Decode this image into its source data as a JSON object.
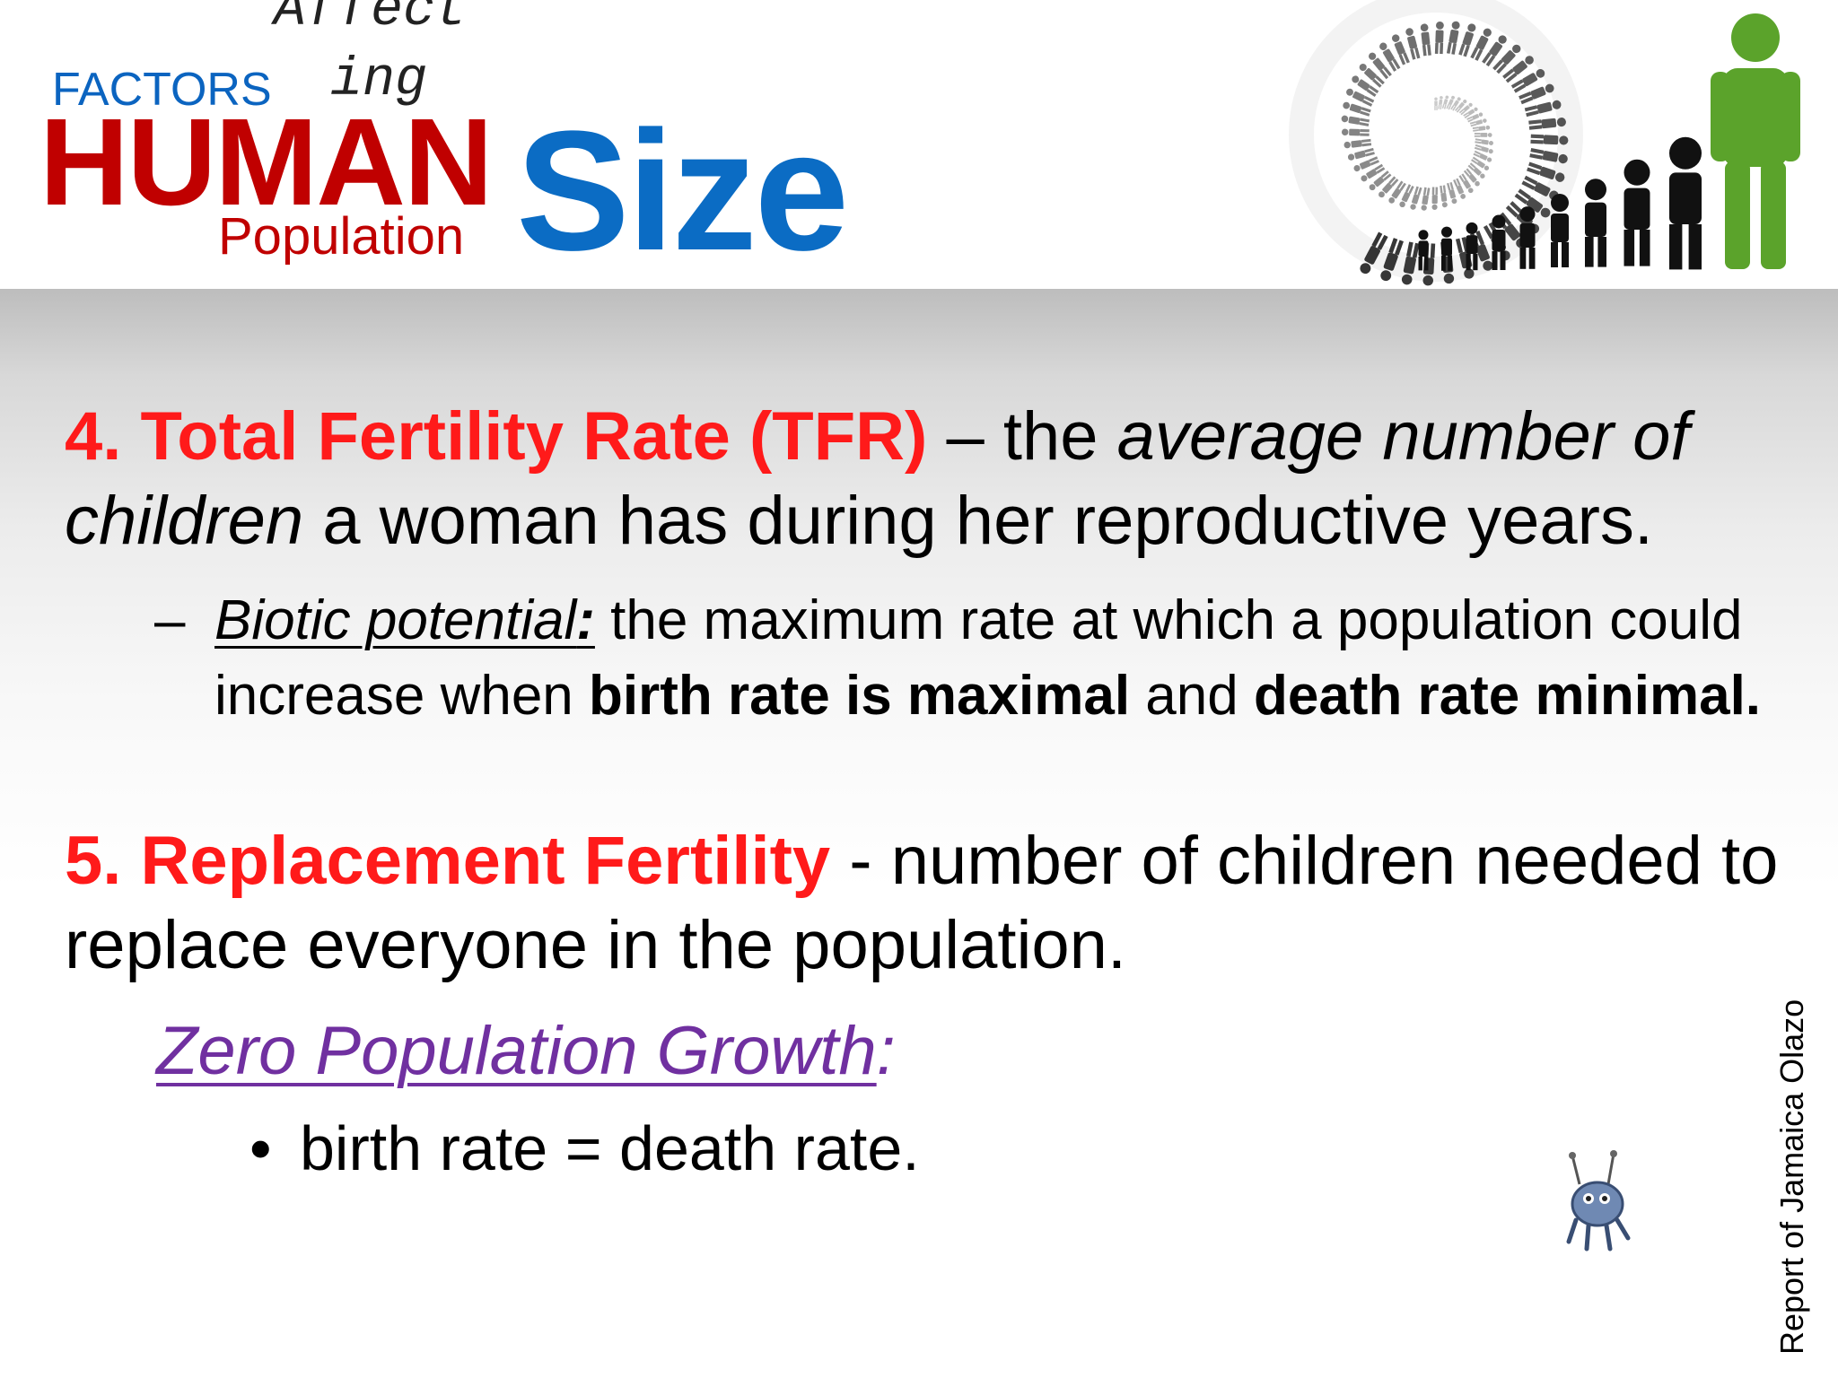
{
  "header": {
    "affecting_top": "Affect",
    "affecting_bottom": "ing",
    "factors": "FACTORS",
    "human": "HUMAN",
    "population": "Population",
    "size": "Size"
  },
  "item4": {
    "title": "4. Total Fertility Rate (TFR)",
    "dash": " – the ",
    "italic1": "average number of children",
    "rest": " a woman has during her reproductive years."
  },
  "sub": {
    "dash": "–",
    "term": "Biotic potential",
    "colon": ":",
    "text1": " the maximum rate at which a population could increase when ",
    "bold1": "birth rate is maximal",
    "text2": " and ",
    "bold2": "death rate minimal."
  },
  "item5": {
    "title": "5. Replacement Fertility",
    "rest": " - number of children needed to replace everyone in the population."
  },
  "zpg": {
    "label": "Zero Population Growth",
    "colon": ":"
  },
  "bullet": {
    "symbol": "•",
    "text": "birth rate = death rate."
  },
  "side_caption": "Report of Jamaica Olazo",
  "colors": {
    "red_title": "#c00000",
    "blue_title": "#0b6cc4",
    "item_red": "#ff1a1a",
    "purple": "#7030a0",
    "figure_green": "#5ba32b"
  },
  "icons": [
    "people-spiral-logo",
    "robot-mascot"
  ]
}
